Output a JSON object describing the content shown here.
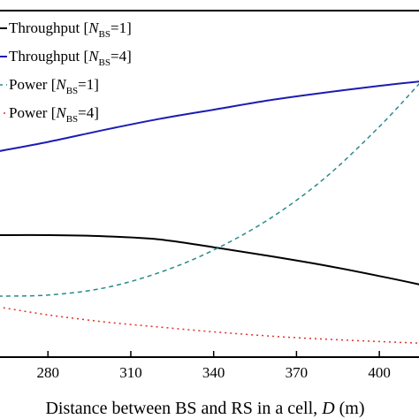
{
  "chart_data": {
    "type": "line",
    "xlabel": "Distance between BS and RS in a cell, D (m)",
    "xlabel_parts": {
      "pre": "Distance between BS and RS in a cell, ",
      "var": "D",
      "post": " (m)"
    },
    "x_ticks": [
      280,
      310,
      340,
      370,
      400
    ],
    "xlim": [
      262,
      415
    ],
    "ylim": [
      0,
      100
    ],
    "legend_position": "top-left",
    "series": [
      {
        "name": "Throughput [N_BS=1]",
        "label_parts": {
          "pre": "Throughput [",
          "var": "N",
          "sub": "BS",
          "post": "=1]"
        },
        "color": "#000000",
        "dash": "solid",
        "width": 2,
        "x": [
          262,
          280,
          300,
          320,
          340,
          360,
          380,
          400,
          415
        ],
        "y": [
          35.2,
          35.2,
          34.9,
          34.0,
          31.7,
          29.2,
          26.5,
          23.4,
          20.9
        ]
      },
      {
        "name": "Throughput [N_BS=4]",
        "label_parts": {
          "pre": "Throughput [",
          "var": "N",
          "sub": "BS",
          "post": "=4]"
        },
        "color": "#1c1cb4",
        "dash": "solid",
        "width": 2,
        "x": [
          262,
          280,
          300,
          320,
          340,
          360,
          380,
          400,
          415
        ],
        "y": [
          59.4,
          62.1,
          65.5,
          68.7,
          71.4,
          74.1,
          76.3,
          78.3,
          79.6
        ]
      },
      {
        "name": "Power [N_BS=1]",
        "label_parts": {
          "pre": "Power [",
          "var": "N",
          "sub": "BS",
          "post": "=1]"
        },
        "color": "#2a8a8a",
        "dash": "5,4",
        "width": 1.5,
        "x": [
          262,
          280,
          300,
          320,
          340,
          360,
          380,
          400,
          415
        ],
        "y": [
          17.6,
          17.9,
          19.9,
          24.3,
          30.9,
          39.8,
          51.5,
          66.5,
          79.4
        ]
      },
      {
        "name": "Power [N_BS=4]",
        "label_parts": {
          "pre": "Power [",
          "var": "N",
          "sub": "BS",
          "post": "=4]"
        },
        "color": "#e0302a",
        "dash": "2,4",
        "width": 1.5,
        "x": [
          262,
          280,
          300,
          320,
          340,
          360,
          380,
          400,
          415
        ],
        "y": [
          14.5,
          12.2,
          10.2,
          8.7,
          7.3,
          6.1,
          5.2,
          4.5,
          4.0
        ]
      }
    ]
  }
}
